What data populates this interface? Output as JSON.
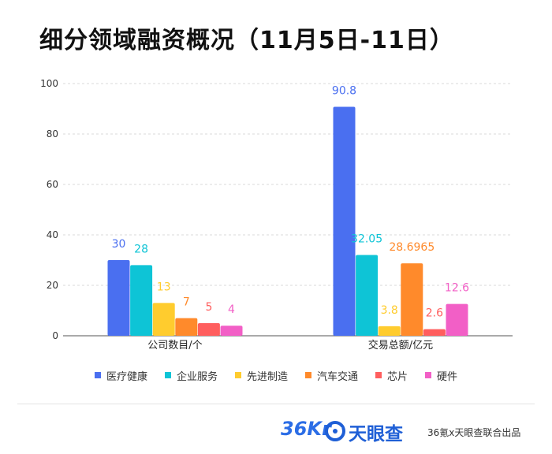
{
  "title": "细分领域融资概况（11月5日-11日）",
  "chart_data": {
    "type": "bar",
    "categories": [
      "公司数目/个",
      "交易总额/亿元"
    ],
    "series": [
      {
        "name": "医疗健康",
        "color": "#4a6ff0",
        "values": [
          30,
          90.8
        ],
        "labels": [
          "30",
          "90.8"
        ]
      },
      {
        "name": "企业服务",
        "color": "#0ec4d6",
        "values": [
          28,
          32.05
        ],
        "labels": [
          "28",
          "32.05"
        ]
      },
      {
        "name": "先进制造",
        "color": "#ffcc2e",
        "values": [
          13,
          3.8
        ],
        "labels": [
          "13",
          "3.8"
        ]
      },
      {
        "name": "汽车交通",
        "color": "#ff8a2b",
        "values": [
          7,
          28.6965
        ],
        "labels": [
          "7",
          "28.6965"
        ]
      },
      {
        "name": "芯片",
        "color": "#ff5e5e",
        "values": [
          5,
          2.6
        ],
        "labels": [
          "5",
          "2.6"
        ]
      },
      {
        "name": "硬件",
        "color": "#f25fc6",
        "values": [
          4,
          12.6
        ],
        "labels": [
          "4",
          "12.6"
        ]
      }
    ],
    "yticks": [
      "0",
      "20",
      "40",
      "60",
      "80",
      "100"
    ],
    "ylim": [
      0,
      100
    ],
    "grid": true,
    "legend_position": "bottom"
  },
  "footer": {
    "logo_36kr": "36Kr",
    "logo_tianyancha": "天眼查",
    "source_note": "36氪x天眼查联合出品"
  }
}
